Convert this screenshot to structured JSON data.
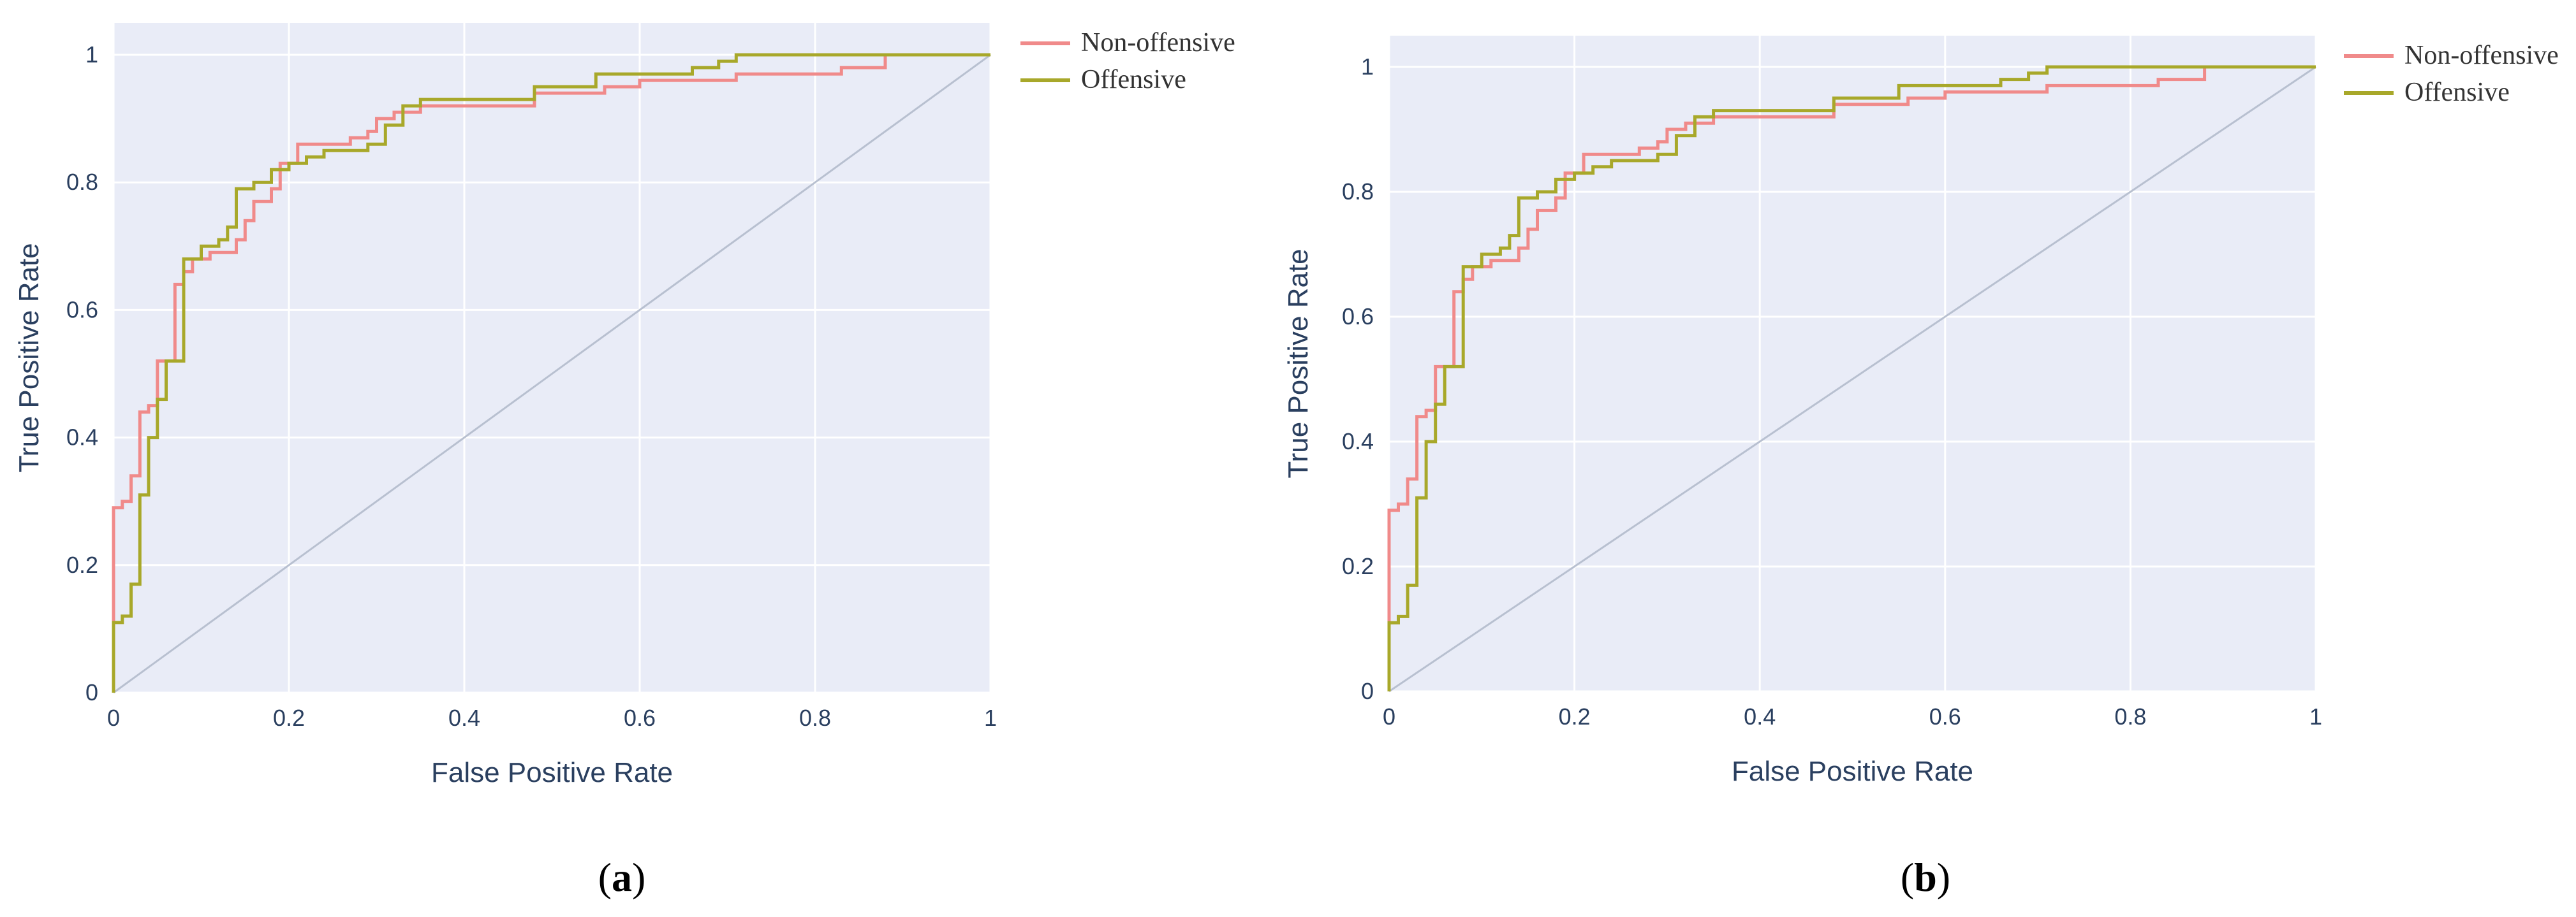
{
  "chart_data": [
    {
      "type": "line",
      "panel_label": "a",
      "xlabel": "False Positive Rate",
      "ylabel": "True Positive Rate",
      "xlim": [
        0,
        1
      ],
      "ylim": [
        0,
        1.05
      ],
      "x_ticks": [
        "0",
        "0.2",
        "0.4",
        "0.6",
        "0.8",
        "1"
      ],
      "y_ticks": [
        "0",
        "0.2",
        "0.4",
        "0.6",
        "0.8",
        "1"
      ],
      "grid": true,
      "legend_position": "outside-top-right",
      "colors": {
        "plot_bg": "#e9ecf7",
        "grid": "#ffffff",
        "diagonal": "#b8c0d0"
      },
      "series": [
        {
          "name": "Non-offensive",
          "color": "#f08a8a",
          "x": [
            0,
            0,
            0.01,
            0.01,
            0.02,
            0.02,
            0.03,
            0.03,
            0.04,
            0.04,
            0.05,
            0.05,
            0.07,
            0.07,
            0.08,
            0.08,
            0.09,
            0.09,
            0.11,
            0.11,
            0.14,
            0.14,
            0.15,
            0.15,
            0.16,
            0.16,
            0.18,
            0.18,
            0.19,
            0.19,
            0.21,
            0.21,
            0.27,
            0.27,
            0.29,
            0.29,
            0.3,
            0.3,
            0.32,
            0.32,
            0.35,
            0.35,
            0.48,
            0.48,
            0.56,
            0.56,
            0.6,
            0.6,
            0.71,
            0.71,
            0.83,
            0.83,
            0.88,
            0.88,
            1
          ],
          "y": [
            0,
            0.29,
            0.29,
            0.3,
            0.3,
            0.34,
            0.34,
            0.44,
            0.44,
            0.45,
            0.45,
            0.52,
            0.52,
            0.64,
            0.64,
            0.66,
            0.66,
            0.68,
            0.68,
            0.69,
            0.69,
            0.71,
            0.71,
            0.74,
            0.74,
            0.77,
            0.77,
            0.79,
            0.79,
            0.83,
            0.83,
            0.86,
            0.86,
            0.87,
            0.87,
            0.88,
            0.88,
            0.9,
            0.9,
            0.91,
            0.91,
            0.92,
            0.92,
            0.94,
            0.94,
            0.95,
            0.95,
            0.96,
            0.96,
            0.97,
            0.97,
            0.98,
            0.98,
            1,
            1
          ]
        },
        {
          "name": "Offensive",
          "color": "#a8a82a",
          "x": [
            0,
            0,
            0.01,
            0.01,
            0.02,
            0.02,
            0.03,
            0.03,
            0.04,
            0.04,
            0.05,
            0.05,
            0.06,
            0.06,
            0.08,
            0.08,
            0.1,
            0.1,
            0.12,
            0.12,
            0.13,
            0.13,
            0.14,
            0.14,
            0.16,
            0.16,
            0.18,
            0.18,
            0.2,
            0.2,
            0.22,
            0.22,
            0.24,
            0.24,
            0.29,
            0.29,
            0.31,
            0.31,
            0.33,
            0.33,
            0.35,
            0.35,
            0.48,
            0.48,
            0.55,
            0.55,
            0.66,
            0.66,
            0.69,
            0.69,
            0.71,
            0.71,
            1
          ],
          "y": [
            0,
            0.11,
            0.11,
            0.12,
            0.12,
            0.17,
            0.17,
            0.31,
            0.31,
            0.4,
            0.4,
            0.46,
            0.46,
            0.52,
            0.52,
            0.68,
            0.68,
            0.7,
            0.7,
            0.71,
            0.71,
            0.73,
            0.73,
            0.79,
            0.79,
            0.8,
            0.8,
            0.82,
            0.82,
            0.83,
            0.83,
            0.84,
            0.84,
            0.85,
            0.85,
            0.86,
            0.86,
            0.89,
            0.89,
            0.92,
            0.92,
            0.93,
            0.93,
            0.95,
            0.95,
            0.97,
            0.97,
            0.98,
            0.98,
            0.99,
            0.99,
            1,
            1
          ]
        }
      ]
    },
    {
      "type": "line",
      "panel_label": "b",
      "xlabel": "False Positive Rate",
      "ylabel": "True Positive Rate",
      "xlim": [
        0,
        1
      ],
      "ylim": [
        0,
        1.05
      ],
      "x_ticks": [
        "0",
        "0.2",
        "0.4",
        "0.6",
        "0.8",
        "1"
      ],
      "y_ticks": [
        "0",
        "0.2",
        "0.4",
        "0.6",
        "0.8",
        "1"
      ],
      "grid": true,
      "legend_position": "outside-top-right",
      "colors": {
        "plot_bg": "#e9ecf7",
        "grid": "#ffffff",
        "diagonal": "#b8c0d0"
      },
      "series": [
        {
          "name": "Non-offensive",
          "color": "#f08a8a",
          "x": [
            0,
            0,
            0.01,
            0.01,
            0.02,
            0.02,
            0.03,
            0.03,
            0.04,
            0.04,
            0.05,
            0.05,
            0.07,
            0.07,
            0.08,
            0.08,
            0.09,
            0.09,
            0.11,
            0.11,
            0.14,
            0.14,
            0.15,
            0.15,
            0.16,
            0.16,
            0.18,
            0.18,
            0.19,
            0.19,
            0.21,
            0.21,
            0.27,
            0.27,
            0.29,
            0.29,
            0.3,
            0.3,
            0.32,
            0.32,
            0.35,
            0.35,
            0.48,
            0.48,
            0.56,
            0.56,
            0.6,
            0.6,
            0.71,
            0.71,
            0.83,
            0.83,
            0.88,
            0.88,
            1
          ],
          "y": [
            0,
            0.29,
            0.29,
            0.3,
            0.3,
            0.34,
            0.34,
            0.44,
            0.44,
            0.45,
            0.45,
            0.52,
            0.52,
            0.64,
            0.64,
            0.66,
            0.66,
            0.68,
            0.68,
            0.69,
            0.69,
            0.71,
            0.71,
            0.74,
            0.74,
            0.77,
            0.77,
            0.79,
            0.79,
            0.83,
            0.83,
            0.86,
            0.86,
            0.87,
            0.87,
            0.88,
            0.88,
            0.9,
            0.9,
            0.91,
            0.91,
            0.92,
            0.92,
            0.94,
            0.94,
            0.95,
            0.95,
            0.96,
            0.96,
            0.97,
            0.97,
            0.98,
            0.98,
            1,
            1
          ]
        },
        {
          "name": "Offensive",
          "color": "#a8a82a",
          "x": [
            0,
            0,
            0.01,
            0.01,
            0.02,
            0.02,
            0.03,
            0.03,
            0.04,
            0.04,
            0.05,
            0.05,
            0.06,
            0.06,
            0.08,
            0.08,
            0.1,
            0.1,
            0.12,
            0.12,
            0.13,
            0.13,
            0.14,
            0.14,
            0.16,
            0.16,
            0.18,
            0.18,
            0.2,
            0.2,
            0.22,
            0.22,
            0.24,
            0.24,
            0.29,
            0.29,
            0.31,
            0.31,
            0.33,
            0.33,
            0.35,
            0.35,
            0.48,
            0.48,
            0.55,
            0.55,
            0.66,
            0.66,
            0.69,
            0.69,
            0.71,
            0.71,
            1
          ],
          "y": [
            0,
            0.11,
            0.11,
            0.12,
            0.12,
            0.17,
            0.17,
            0.31,
            0.31,
            0.4,
            0.4,
            0.46,
            0.46,
            0.52,
            0.52,
            0.68,
            0.68,
            0.7,
            0.7,
            0.71,
            0.71,
            0.73,
            0.73,
            0.79,
            0.79,
            0.8,
            0.8,
            0.82,
            0.82,
            0.83,
            0.83,
            0.84,
            0.84,
            0.85,
            0.85,
            0.86,
            0.86,
            0.89,
            0.89,
            0.92,
            0.92,
            0.93,
            0.93,
            0.95,
            0.95,
            0.97,
            0.97,
            0.98,
            0.98,
            0.99,
            0.99,
            1,
            1
          ]
        }
      ]
    }
  ]
}
